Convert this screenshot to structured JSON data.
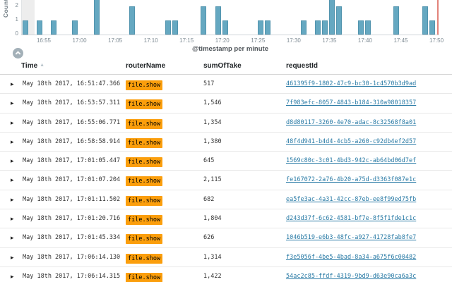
{
  "chart": {
    "ylabel": "Count",
    "xlabel": "@timestamp per minute",
    "y_ticks": [
      "2",
      "1",
      "0"
    ],
    "x_ticks": [
      "16:55",
      "17:00",
      "17:05",
      "17:10",
      "17:15",
      "17:20",
      "17:25",
      "17:30",
      "17:35",
      "17:40",
      "17:45",
      "17:50"
    ]
  },
  "chart_data": {
    "type": "bar",
    "title": "",
    "xlabel": "@timestamp per minute",
    "ylabel": "Count",
    "x_tick_labels": [
      "16:55",
      "17:00",
      "17:05",
      "17:10",
      "17:15",
      "17:20",
      "17:25",
      "17:30",
      "17:35",
      "17:40",
      "17:45",
      "17:50"
    ],
    "y_tick_labels": [
      0,
      1,
      2
    ],
    "ylim_visible": [
      0,
      2.5
    ],
    "layout_note": "histogram clipped at top of viewport; bars taller than 2 run off-screen; red end-of-range marker at right edge",
    "points": [
      {
        "minute": "16:51",
        "count": 1
      },
      {
        "minute": "16:53",
        "count": 1
      },
      {
        "minute": "16:55",
        "count": 1
      },
      {
        "minute": "16:58",
        "count": 1
      },
      {
        "minute": "17:01",
        "count": 5
      },
      {
        "minute": "17:06",
        "count": 2
      },
      {
        "minute": "17:11",
        "count": 1
      },
      {
        "minute": "17:12",
        "count": 1
      },
      {
        "minute": "17:16",
        "count": 2
      },
      {
        "minute": "17:18",
        "count": 2
      },
      {
        "minute": "17:19",
        "count": 1
      },
      {
        "minute": "17:24",
        "count": 1
      },
      {
        "minute": "17:25",
        "count": 1
      },
      {
        "minute": "17:30",
        "count": 1
      },
      {
        "minute": "17:32",
        "count": 1
      },
      {
        "minute": "17:33",
        "count": 1
      },
      {
        "minute": "17:34",
        "count": 4
      },
      {
        "minute": "17:35",
        "count": 2
      },
      {
        "minute": "17:38",
        "count": 1
      },
      {
        "minute": "17:39",
        "count": 1
      },
      {
        "minute": "17:43",
        "count": 2
      },
      {
        "minute": "17:47",
        "count": 2
      },
      {
        "minute": "17:48",
        "count": 1
      }
    ]
  },
  "table": {
    "columns": {
      "time": "Time",
      "routerName": "routerName",
      "sumOfTake": "sumOfTake",
      "requestId": "requestId"
    },
    "rows": [
      {
        "time": "May 18th 2017, 16:51:47.366",
        "routerName": "file.show",
        "sumOfTake": "517",
        "requestId": "461395f9-1802-47c9-bc30-1c4570b3d9ad"
      },
      {
        "time": "May 18th 2017, 16:53:57.311",
        "routerName": "file.show",
        "sumOfTake": "1,546",
        "requestId": "7f983efc-8057-4843-b184-310a98018357"
      },
      {
        "time": "May 18th 2017, 16:55:06.771",
        "routerName": "file.show",
        "sumOfTake": "1,354",
        "requestId": "d8d80117-3260-4e70-adac-8c32568f8a01"
      },
      {
        "time": "May 18th 2017, 16:58:58.914",
        "routerName": "file.show",
        "sumOfTake": "1,380",
        "requestId": "48f4d941-b4d4-4cb5-a260-c92db4ef2d57"
      },
      {
        "time": "May 18th 2017, 17:01:05.447",
        "routerName": "file.show",
        "sumOfTake": "645",
        "requestId": "1569c80c-3c01-4bd3-942c-ab64bd06d7ef"
      },
      {
        "time": "May 18th 2017, 17:01:07.204",
        "routerName": "file.show",
        "sumOfTake": "2,115",
        "requestId": "fe167072-2a76-4b20-a75d-d3363f087e1c"
      },
      {
        "time": "May 18th 2017, 17:01:11.502",
        "routerName": "file.show",
        "sumOfTake": "682",
        "requestId": "ea5fe3ac-4a31-42cc-87eb-ee8f99ed75fb"
      },
      {
        "time": "May 18th 2017, 17:01:20.716",
        "routerName": "file.show",
        "sumOfTake": "1,804",
        "requestId": "d243d37f-6c62-4581-bf7e-8f5f1fde1c1c"
      },
      {
        "time": "May 18th 2017, 17:01:45.334",
        "routerName": "file.show",
        "sumOfTake": "626",
        "requestId": "1046b519-e6b3-48fc-a927-41728fab8fe7"
      },
      {
        "time": "May 18th 2017, 17:06:14.130",
        "routerName": "file.show",
        "sumOfTake": "1,314",
        "requestId": "f3e5056f-4be5-4bad-8a34-a675f6c00482"
      },
      {
        "time": "May 18th 2017, 17:06:14.315",
        "routerName": "file.show",
        "sumOfTake": "1,422",
        "requestId": "54ac2c85-ffdf-4319-9bd9-d63e90ca6a3c"
      }
    ]
  },
  "colors": {
    "bar_fill": "#65a8c1",
    "bar_border": "#5294ae",
    "highlight_mark_bg": "#fb9e0c",
    "link": "#2a7ba6",
    "time_marker": "#e3837a",
    "hover_band": "#ededed"
  }
}
